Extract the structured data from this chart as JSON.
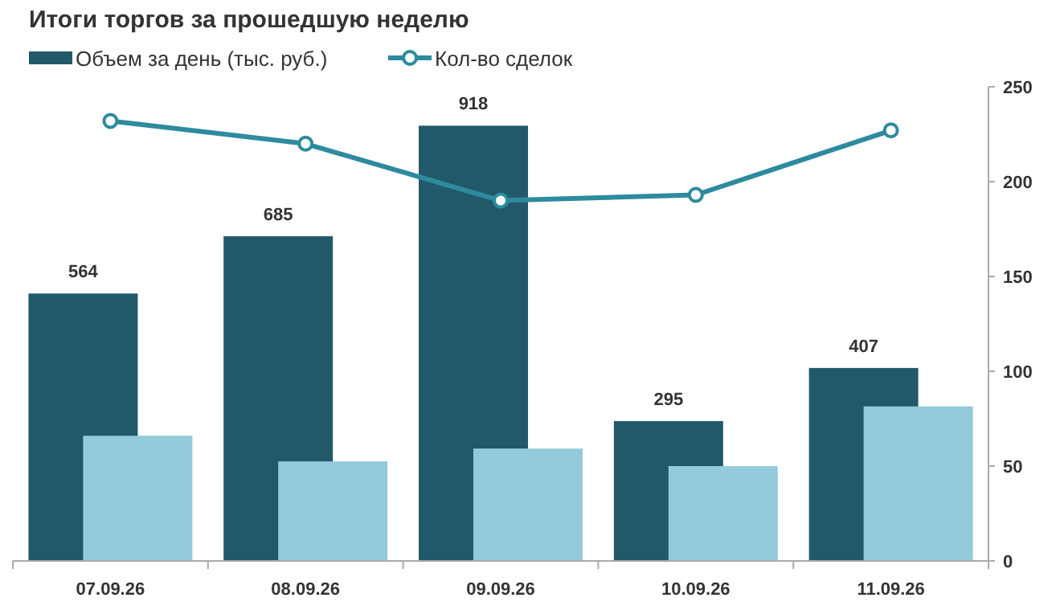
{
  "chart_data": {
    "type": "bar",
    "title": "Итоги торгов за прошедшую неделю",
    "categories": [
      "07.09.26",
      "08.09.26",
      "09.09.26",
      "10.09.26",
      "11.09.26"
    ],
    "series": [
      {
        "name": "Объем за день (тыс. руб.)",
        "color": "#22596a",
        "values": [
          564,
          685,
          918,
          295,
          407
        ],
        "data_labels": true
      },
      {
        "color": "#93cbdc",
        "values": [
          264,
          210,
          237,
          200,
          326
        ]
      },
      {
        "name": "Кол-во сделок",
        "type": "line",
        "axis": "y2",
        "color": "#2e8b9e",
        "values": [
          232,
          220,
          190,
          193,
          227
        ]
      }
    ],
    "ylim": [
      0,
      1000
    ],
    "y2lim": [
      0,
      250
    ],
    "y2ticks": [
      0,
      50,
      100,
      150,
      200,
      250
    ],
    "legend": "top left",
    "marker": "circle",
    "grid": false
  }
}
